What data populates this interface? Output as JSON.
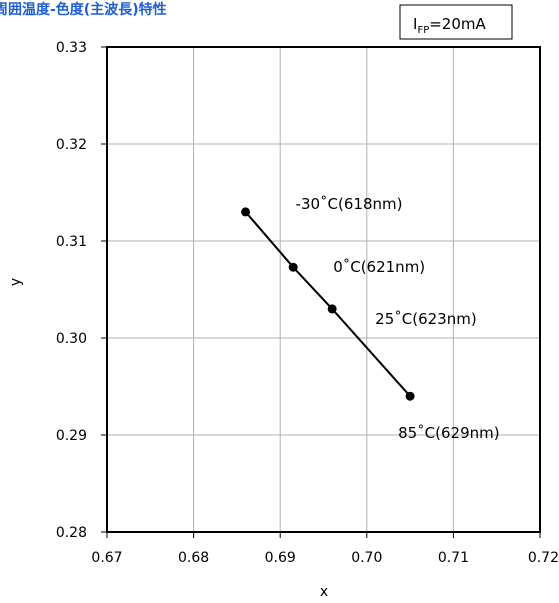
{
  "chart_data": {
    "type": "line",
    "title": "周囲温度-色度(主波長)特性",
    "condition": {
      "symbol": "I",
      "subscript": "FP",
      "value": "=20mA"
    },
    "xlabel": "x",
    "ylabel": "y",
    "xlim": [
      0.67,
      0.72
    ],
    "ylim": [
      0.28,
      0.33
    ],
    "xticks": [
      "0.67",
      "0.68",
      "0.69",
      "0.70",
      "0.71",
      "0.72"
    ],
    "yticks": [
      "0.28",
      "0.29",
      "0.30",
      "0.31",
      "0.32",
      "0.33"
    ],
    "grid": true,
    "series": [
      {
        "points": [
          {
            "x": 0.686,
            "y": 0.313,
            "label": "-30˚C(618nm)"
          },
          {
            "x": 0.6915,
            "y": 0.3073,
            "label": "0˚C(621nm)"
          },
          {
            "x": 0.696,
            "y": 0.303,
            "label": "25˚C(623nm)"
          },
          {
            "x": 0.705,
            "y": 0.294,
            "label": "85˚C(629nm)"
          }
        ]
      }
    ]
  }
}
